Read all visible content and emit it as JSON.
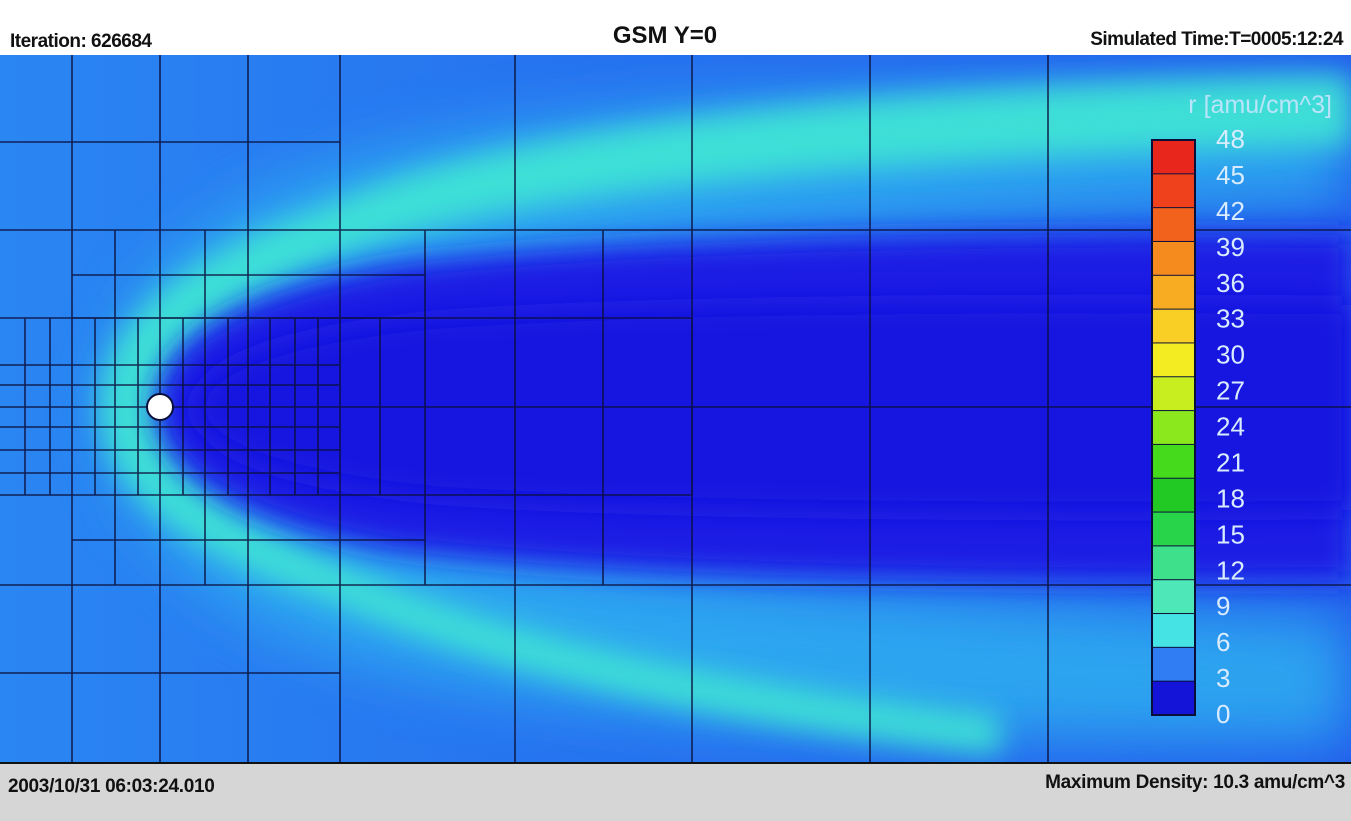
{
  "header": {
    "iteration": "Iteration: 626684",
    "title": "GSM Y=0",
    "simulated_time": "Simulated Time:T=0005:12:24"
  },
  "footer": {
    "datetime": "2003/10/31 06:03:24.010",
    "max_density": "Maximum Density: 10.3 amu/cm^3"
  },
  "colorbar": {
    "title": "r [amu/cm^3]",
    "ticks": [
      "48",
      "45",
      "42",
      "39",
      "36",
      "33",
      "30",
      "27",
      "24",
      "21",
      "18",
      "15",
      "12",
      "9",
      "6",
      "3",
      "0"
    ],
    "colors": [
      "#e8261c",
      "#ef421c",
      "#f2621c",
      "#f58a1f",
      "#f7ac22",
      "#f9cf26",
      "#f3ec23",
      "#c9ee1f",
      "#8be81d",
      "#45da1c",
      "#22c924",
      "#28d54a",
      "#3fe08c",
      "#4ee8b8",
      "#45e3e4",
      "#2f7cf3",
      "#1414d8"
    ]
  },
  "colors": {
    "background_field": "#1f6ef0",
    "cavity": "#1a1fe4",
    "bow_shock": "#45e8c8",
    "earth": "#ffffff"
  }
}
